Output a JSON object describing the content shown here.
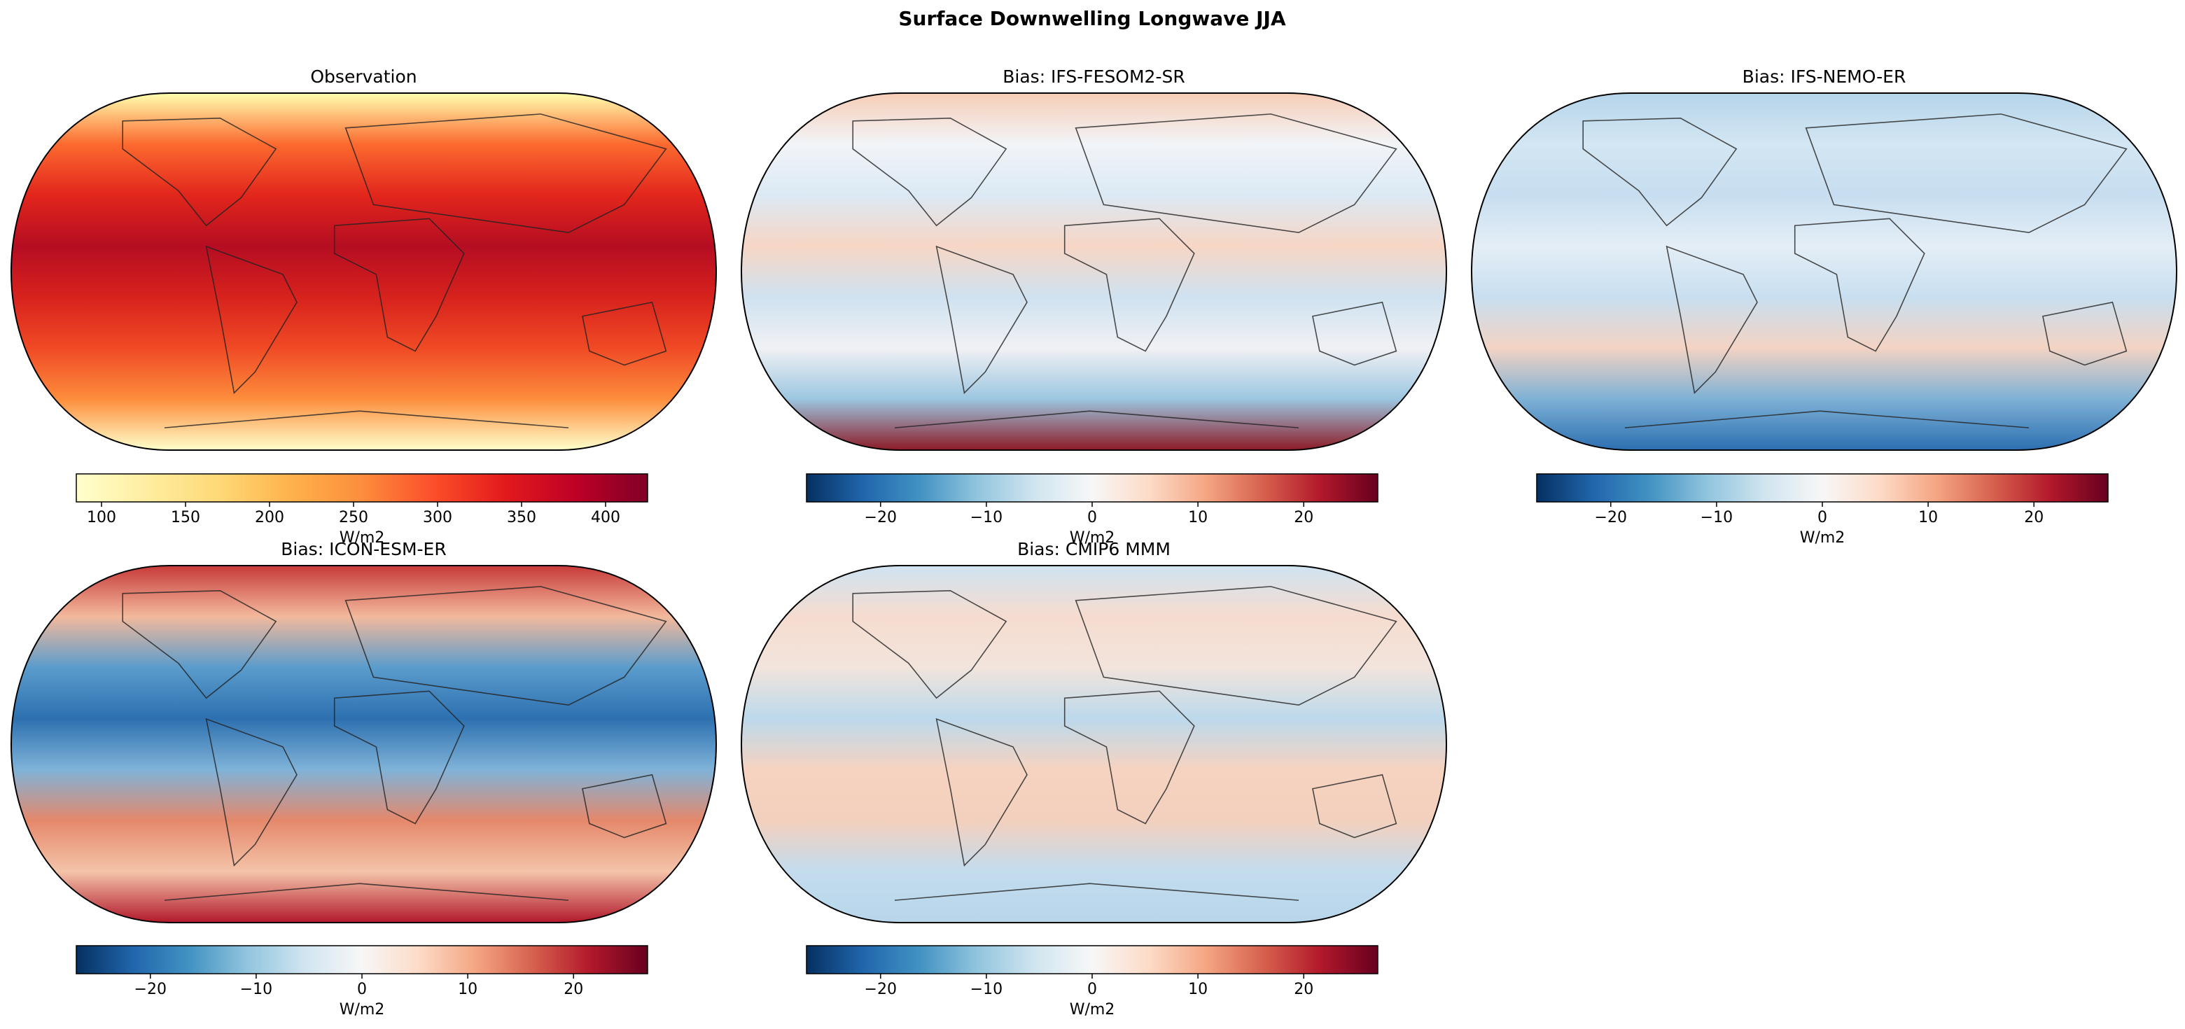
{
  "title": "Surface Downwelling Longwave JJA",
  "chart_data": [
    {
      "type": "map",
      "title": "Observation",
      "colormap": "YlOrRd",
      "xlim": [
        85,
        425
      ],
      "xticks": [
        100,
        150,
        200,
        250,
        300,
        350,
        400
      ],
      "xlabel": "W/m2"
    },
    {
      "type": "map",
      "title": "Bias: IFS-FESOM2-SR",
      "colormap": "RdBu_r",
      "xlim": [
        -27,
        27
      ],
      "xticks": [
        {
          "value": -20,
          "label": "−20"
        },
        {
          "value": -10,
          "label": "−10"
        },
        0,
        10,
        20
      ],
      "xlabel": "W/m2"
    },
    {
      "type": "map",
      "title": "Bias: IFS-NEMO-ER",
      "colormap": "RdBu_r",
      "xlim": [
        -27,
        27
      ],
      "xticks": [
        {
          "value": -20,
          "label": "−20"
        },
        {
          "value": -10,
          "label": "−10"
        },
        0,
        10,
        20
      ],
      "xlabel": "W/m2"
    },
    {
      "type": "map",
      "title": "Bias: ICON-ESM-ER",
      "colormap": "RdBu_r",
      "xlim": [
        -27,
        27
      ],
      "xticks": [
        {
          "value": -20,
          "label": "−20"
        },
        {
          "value": -10,
          "label": "−10"
        },
        0,
        10,
        20
      ],
      "xlabel": "W/m2"
    },
    {
      "type": "map",
      "title": "Bias: CMIP6 MMM",
      "colormap": "RdBu_r",
      "xlim": [
        -27,
        27
      ],
      "xticks": [
        {
          "value": -20,
          "label": "−20"
        },
        {
          "value": -10,
          "label": "−10"
        },
        0,
        10,
        20
      ],
      "xlabel": "W/m2"
    }
  ]
}
